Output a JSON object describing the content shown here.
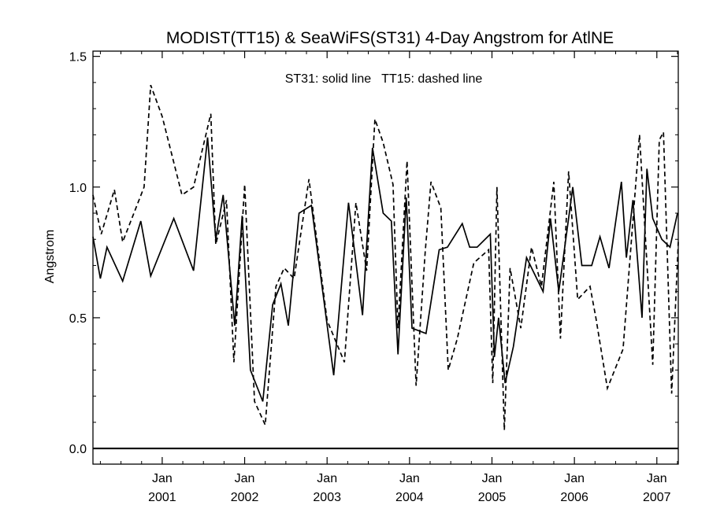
{
  "chart_data": {
    "type": "line",
    "title": "MODIST(TT15) & SeaWiFS(ST31) 4-Day Angstrom for AtlNE",
    "annotation": "ST31: solid line   TT15: dashed line",
    "ylabel": "Angstrom",
    "xlabel": "",
    "ylim": [
      -0.06,
      1.52
    ],
    "xlim": [
      2000.16,
      2007.26
    ],
    "yticks": [
      {
        "value": 0.0,
        "label": "0.0"
      },
      {
        "value": 0.5,
        "label": "0.5"
      },
      {
        "value": 1.0,
        "label": "1.0"
      },
      {
        "value": 1.5,
        "label": "1.5"
      }
    ],
    "xticks": [
      {
        "value": 2001,
        "month": "Jan",
        "year": "2001"
      },
      {
        "value": 2002,
        "month": "Jan",
        "year": "2002"
      },
      {
        "value": 2003,
        "month": "Jan",
        "year": "2003"
      },
      {
        "value": 2004,
        "month": "Jan",
        "year": "2004"
      },
      {
        "value": 2005,
        "month": "Jan",
        "year": "2005"
      },
      {
        "value": 2006,
        "month": "Jan",
        "year": "2006"
      },
      {
        "value": 2007,
        "month": "Jan",
        "year": "2007"
      }
    ],
    "reference_line": 0.0,
    "grid": false,
    "series": [
      {
        "name": "ST31",
        "style": "solid",
        "x": [
          2000.16,
          2000.25,
          2000.33,
          2000.52,
          2000.74,
          2000.86,
          2001.14,
          2001.38,
          2001.55,
          2001.65,
          2001.74,
          2001.88,
          2001.97,
          2002.07,
          2002.22,
          2002.34,
          2002.44,
          2002.53,
          2002.66,
          2002.81,
          2003.08,
          2003.26,
          2003.43,
          2003.55,
          2003.68,
          2003.78,
          2003.86,
          2003.96,
          2004.03,
          2004.2,
          2004.36,
          2004.46,
          2004.64,
          2004.73,
          2004.82,
          2004.98,
          2005.03,
          2005.08,
          2005.16,
          2005.26,
          2005.42,
          2005.62,
          2005.71,
          2005.81,
          2005.98,
          2006.09,
          2006.16,
          2006.21,
          2006.31,
          2006.42,
          2006.57,
          2006.63,
          2006.71,
          2006.82,
          2006.88,
          2006.95,
          2007.06,
          2007.16,
          2007.25
        ],
        "y": [
          0.81,
          0.65,
          0.77,
          0.64,
          0.87,
          0.66,
          0.88,
          0.68,
          1.19,
          0.8,
          0.97,
          0.47,
          0.89,
          0.3,
          0.18,
          0.55,
          0.63,
          0.47,
          0.9,
          0.93,
          0.28,
          0.94,
          0.51,
          1.15,
          0.9,
          0.87,
          0.36,
          0.96,
          0.46,
          0.44,
          0.76,
          0.77,
          0.86,
          0.77,
          0.77,
          0.82,
          0.35,
          0.5,
          0.25,
          0.39,
          0.73,
          0.6,
          0.88,
          0.6,
          1.0,
          0.7,
          0.7,
          0.7,
          0.81,
          0.69,
          1.02,
          0.73,
          0.95,
          0.5,
          1.07,
          0.88,
          0.8,
          0.77,
          0.9
        ]
      },
      {
        "name": "TT15",
        "style": "dashed",
        "x": [
          2000.16,
          2000.26,
          2000.42,
          2000.52,
          2000.78,
          2000.86,
          2001.0,
          2001.24,
          2001.38,
          2001.59,
          2001.65,
          2001.78,
          2001.87,
          2002.0,
          2002.12,
          2002.25,
          2002.38,
          2002.48,
          2002.6,
          2002.78,
          2003.0,
          2003.21,
          2003.35,
          2003.48,
          2003.58,
          2003.68,
          2003.8,
          2003.86,
          2003.97,
          2004.08,
          2004.19,
          2004.26,
          2004.38,
          2004.47,
          2004.58,
          2004.78,
          2004.96,
          2005.01,
          2005.06,
          2005.15,
          2005.22,
          2005.35,
          2005.48,
          2005.6,
          2005.75,
          2005.83,
          2005.93,
          2006.04,
          2006.19,
          2006.26,
          2006.4,
          2006.59,
          2006.79,
          2006.95,
          2007.03,
          2007.08,
          2007.18,
          2007.26
        ],
        "y": [
          0.97,
          0.82,
          0.99,
          0.79,
          1.0,
          1.39,
          1.27,
          0.97,
          1.0,
          1.28,
          0.78,
          0.95,
          0.33,
          1.01,
          0.18,
          0.09,
          0.62,
          0.69,
          0.65,
          1.03,
          0.49,
          0.33,
          0.94,
          0.68,
          1.26,
          1.17,
          1.01,
          0.46,
          1.1,
          0.24,
          0.75,
          1.02,
          0.92,
          0.3,
          0.42,
          0.71,
          0.76,
          0.25,
          1.0,
          0.07,
          0.69,
          0.46,
          0.77,
          0.62,
          1.02,
          0.42,
          1.06,
          0.57,
          0.62,
          0.5,
          0.23,
          0.38,
          1.2,
          0.32,
          1.18,
          1.21,
          0.21,
          0.79
        ]
      }
    ]
  }
}
